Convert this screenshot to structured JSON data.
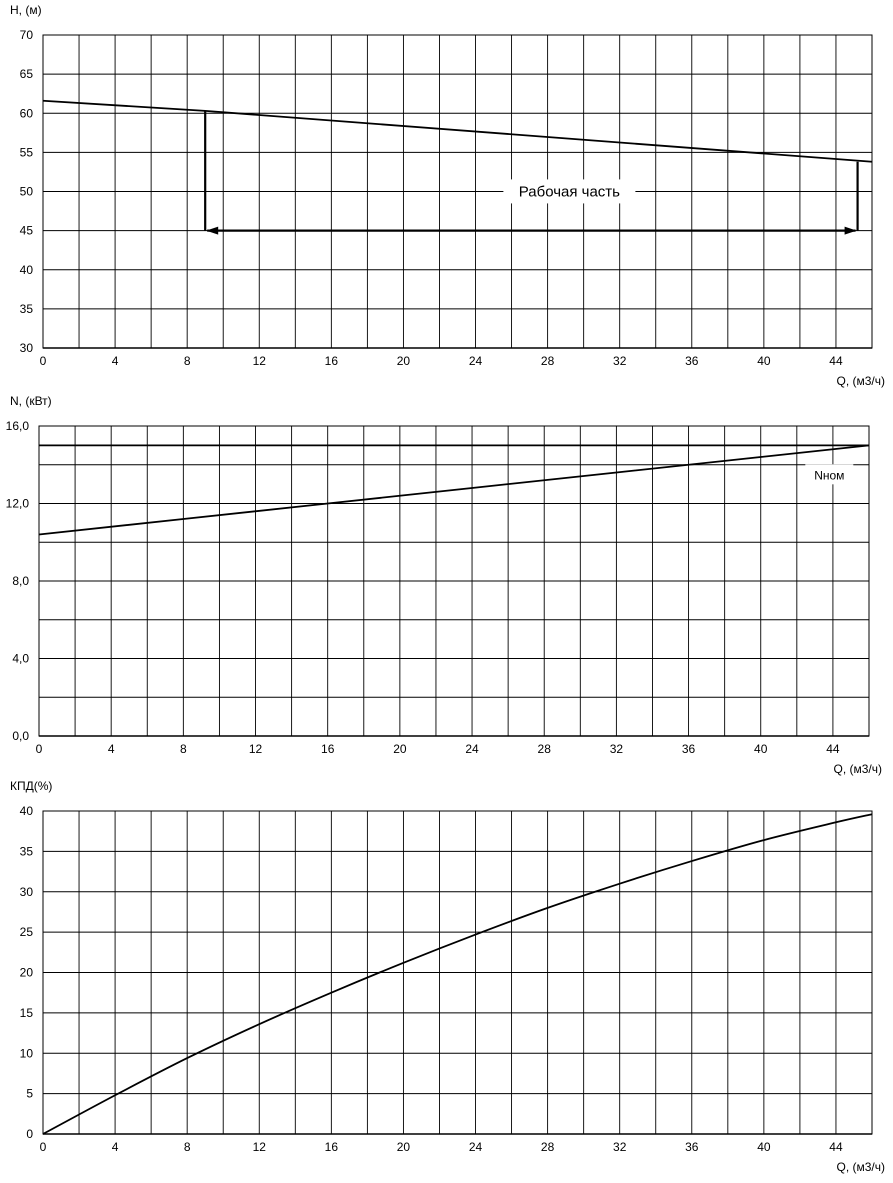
{
  "chart_data": [
    {
      "type": "line",
      "ylabel": "H, (м)",
      "xlabel": "Q, (м3/ч)",
      "xlim": [
        0,
        46
      ],
      "ylim": [
        30,
        70
      ],
      "xticks": [
        "0",
        "4",
        "8",
        "12",
        "16",
        "20",
        "24",
        "28",
        "32",
        "36",
        "40",
        "44"
      ],
      "yticks": [
        "30",
        "35",
        "40",
        "45",
        "50",
        "55",
        "60",
        "65",
        "70"
      ],
      "grid": true,
      "series": [
        {
          "x": [
            0,
            9,
            46
          ],
          "y": [
            61.6,
            60.3,
            53.8
          ]
        }
      ],
      "annotation": {
        "text": "Рабочая часть",
        "range_x": [
          9,
          45.2
        ],
        "arrow_y": 45,
        "left_top_y": 60.3,
        "right_top_y": 53.8
      }
    },
    {
      "type": "line",
      "ylabel": "N, (кВт)",
      "xlabel": "Q, (м3/ч)",
      "xlim": [
        0,
        46
      ],
      "ylim": [
        0,
        16
      ],
      "xticks": [
        "0",
        "4",
        "8",
        "12",
        "16",
        "20",
        "24",
        "28",
        "32",
        "36",
        "40",
        "44"
      ],
      "yticks": [
        "0,0",
        "4,0",
        "8,0",
        "12,0",
        "16,0"
      ],
      "grid": true,
      "series": [
        {
          "x": [
            0,
            8,
            16,
            24,
            32,
            40,
            46
          ],
          "y": [
            10.4,
            11.2,
            12.0,
            12.8,
            13.6,
            14.4,
            15.0
          ]
        },
        {
          "name": "Nном",
          "x": [
            0,
            46
          ],
          "y": [
            15.0,
            15.0
          ]
        }
      ],
      "annotation": {
        "text": "Nном"
      }
    },
    {
      "type": "line",
      "ylabel": "КПД(%)",
      "xlabel": "Q, (м3/ч)",
      "xlim": [
        0,
        46
      ],
      "ylim": [
        0,
        40
      ],
      "xticks": [
        "0",
        "4",
        "8",
        "12",
        "16",
        "20",
        "24",
        "28",
        "32",
        "36",
        "40",
        "44"
      ],
      "yticks": [
        "0",
        "5",
        "10",
        "15",
        "20",
        "25",
        "30",
        "35",
        "40"
      ],
      "grid": true,
      "series": [
        {
          "x": [
            0,
            4,
            8,
            12,
            16,
            20,
            24,
            28,
            32,
            36,
            40,
            44,
            46
          ],
          "y": [
            0,
            4.8,
            9.4,
            13.6,
            17.5,
            21.2,
            24.7,
            28.0,
            31.0,
            33.8,
            36.4,
            38.6,
            39.6
          ]
        }
      ]
    }
  ]
}
